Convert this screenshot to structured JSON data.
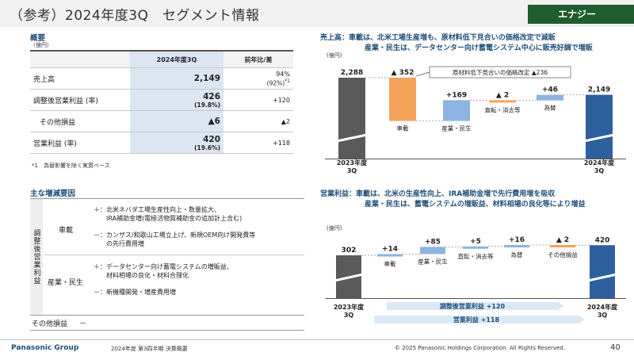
{
  "header": {
    "title": "（参考）2024年度3Q　セグメント情報",
    "segment_tag": "エナジー"
  },
  "overview": {
    "title": "概要",
    "unit": "（億円）",
    "col_current": "2024年度3Q",
    "col_yoy": "前年比/差",
    "rows": [
      {
        "label": "売上高",
        "value": "2,149",
        "sub": "",
        "yoy": "94%",
        "yoy_sub": "(92%)",
        "yoy_note": "*1"
      },
      {
        "label": "調整後営業利益 (率)",
        "value": "426",
        "sub": "(19.8%)",
        "yoy": "+120",
        "yoy_sub": "",
        "yoy_note": ""
      },
      {
        "label": "その他損益",
        "value": "▲6",
        "sub": "",
        "yoy": "▲2",
        "yoy_sub": "",
        "yoy_note": ""
      },
      {
        "label": "営業利益 (率)",
        "value": "420",
        "sub": "(19.6%)",
        "yoy": "+118",
        "yoy_sub": "",
        "yoy_note": ""
      }
    ],
    "footnote": "*1　為替影響を除く実質ベース"
  },
  "factors": {
    "title": "主な増減要因",
    "vertical_label": "調整後営業利益",
    "seg1": "車載",
    "seg1_plus_1": "＋：北米ネバダ工場生産性向上・数量拡大、",
    "seg1_plus_2": "　　IRA補助金増(電極活物質補助金の追加計上含む)",
    "seg1_minus_1": "－：カンザス/和歌山工場立上げ、新規OEM向け開発費等",
    "seg1_minus_2": "　　の先行費用増",
    "seg2": "産業・民生",
    "seg2_plus_1": "＋：データセンター向け蓄電システムの増販益、",
    "seg2_plus_2": "　　材料相場の良化・材料合理化",
    "seg2_minus_1": "－：新機種開発・増産費用増",
    "other_label": "その他損益",
    "other_value": "－"
  },
  "sales_chart_text": {
    "heading_1": "売上高：車載は、北米工場生産増も、原材料低下見合いの価格改定で減販",
    "heading_2": "産業・民生は、データセンター向け蓄電システム中心に販売好調で増販"
  },
  "op_chart_text": {
    "heading_1": "営業利益：車載は、北米の生産性向上、IRA補助金増で先行費用増を吸収",
    "heading_2": "産業・民生は、蓄電システムの増販益、材料相場の良化等により増益"
  },
  "chart_data": [
    {
      "type": "bar",
      "subtype": "waterfall",
      "unit_label": "(億円)",
      "categories": [
        "2023年度\n3Q",
        "車載",
        "産業・民生",
        "直転・消去等",
        "為替",
        "2024年度\n3Q"
      ],
      "values": [
        2288,
        -352,
        169,
        -2,
        46,
        2149
      ],
      "value_labels": [
        "2,288",
        "▲ 352",
        "+169",
        "▲ 2",
        "+46",
        "2,149"
      ],
      "annotation": "原材料低下見合いの価格改定 ▲236",
      "colors": {
        "total": "#5a5a5a",
        "current": "#2e5f9e",
        "decrease": "#f4a259",
        "increase": "#8db3e2"
      }
    },
    {
      "type": "bar",
      "subtype": "waterfall",
      "unit_label": "(億円)",
      "categories": [
        "2023年度\n3Q",
        "車載",
        "産業・民生",
        "直転・消去等",
        "為替",
        "その他損益",
        "2024年度\n3Q"
      ],
      "values": [
        302,
        14,
        85,
        5,
        16,
        -2,
        420
      ],
      "value_labels": [
        "302",
        "+14",
        "+85",
        "+5",
        "+16",
        "▲ 2",
        "420"
      ],
      "arrow_labels": [
        "調整後営業利益 +120",
        "営業利益 +118"
      ],
      "colors": {
        "total": "#5a5a5a",
        "current": "#2e5f9e",
        "increase": "#8db3e2",
        "decrease": "#f4a259"
      }
    }
  ],
  "footer": {
    "brand": "Panasonic Group",
    "doc": "2024年度 第3四半期 決算概要",
    "copyright": "© 2025 Panasonic Holdings Corporation. All Rights Reserved.",
    "page": "40"
  }
}
